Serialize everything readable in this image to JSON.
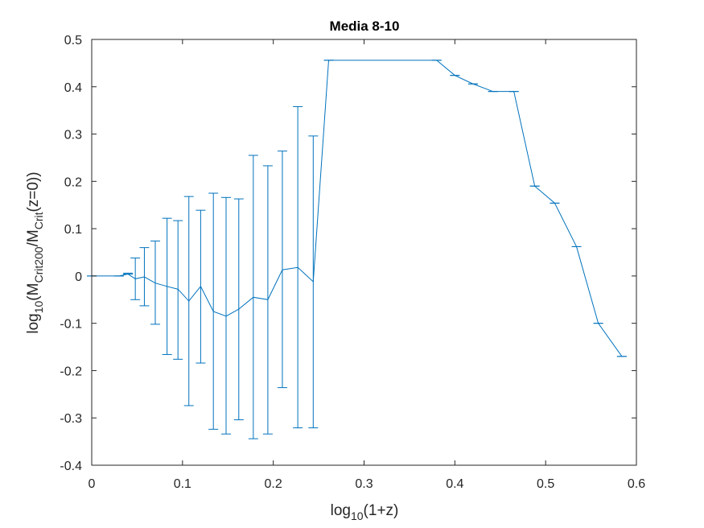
{
  "chart_data": {
    "type": "line",
    "title": "Media 8-10",
    "xlabel": {
      "base": "log",
      "sub": "10",
      "rest": "(1+z)"
    },
    "ylabel": {
      "p1": "log",
      "s1": "10",
      "p2": "(M",
      "s2": "Crit200",
      "p3": "/M",
      "s3": "Crit",
      "p4": "(z=0))"
    },
    "xlim": [
      0,
      0.6
    ],
    "ylim": [
      -0.4,
      0.5
    ],
    "xticks": [
      0,
      0.1,
      0.2,
      0.3,
      0.4,
      0.5,
      0.6
    ],
    "xtick_labels": [
      "0",
      "0.1",
      "0.2",
      "0.3",
      "0.4",
      "0.5",
      "0.6"
    ],
    "yticks": [
      -0.4,
      -0.3,
      -0.2,
      -0.1,
      0,
      0.1,
      0.2,
      0.3,
      0.4,
      0.5
    ],
    "ytick_labels": [
      "-0.4",
      "-0.3",
      "-0.2",
      "-0.1",
      "0",
      "0.1",
      "0.2",
      "0.3",
      "0.4",
      "0.5"
    ],
    "grid": false,
    "box": true,
    "colors": {
      "series": "#0072BD",
      "axis": "#262626"
    },
    "series": [
      {
        "x": [
          0,
          0.03,
          0.04,
          0.048,
          0.058,
          0.07,
          0.083,
          0.095,
          0.107,
          0.12,
          0.134,
          0.148,
          0.162,
          0.178,
          0.194,
          0.21,
          0.227,
          0.244,
          0.261,
          0.38,
          0.4,
          0.42,
          0.442,
          0.465,
          0.488,
          0.51,
          0.534,
          0.558,
          0.584
        ],
        "y": [
          0,
          0,
          0.004,
          -0.006,
          -0.002,
          -0.015,
          -0.022,
          -0.028,
          -0.053,
          -0.022,
          -0.075,
          -0.085,
          -0.07,
          -0.045,
          -0.05,
          0.013,
          0.018,
          -0.012,
          0.456,
          0.456,
          0.424,
          0.406,
          0.39,
          0.39,
          0.19,
          0.154,
          0.062,
          -0.1,
          -0.17
        ],
        "yerr_low": [
          0,
          0,
          0.004,
          -0.05,
          -0.063,
          -0.102,
          -0.166,
          -0.176,
          -0.274,
          -0.184,
          -0.324,
          -0.334,
          -0.304,
          -0.344,
          -0.334,
          -0.236,
          -0.321,
          -0.321,
          0.456,
          0.456,
          0.424,
          0.406,
          0.39,
          0.39,
          0.19,
          0.154,
          0.062,
          -0.1,
          -0.17
        ],
        "yerr_high": [
          0,
          0,
          0.006,
          0.038,
          0.06,
          0.074,
          0.122,
          0.117,
          0.168,
          0.139,
          0.175,
          0.166,
          0.163,
          0.255,
          0.233,
          0.264,
          0.358,
          0.296,
          0.456,
          0.456,
          0.424,
          0.406,
          0.39,
          0.39,
          0.19,
          0.154,
          0.062,
          -0.1,
          -0.17
        ]
      }
    ]
  }
}
